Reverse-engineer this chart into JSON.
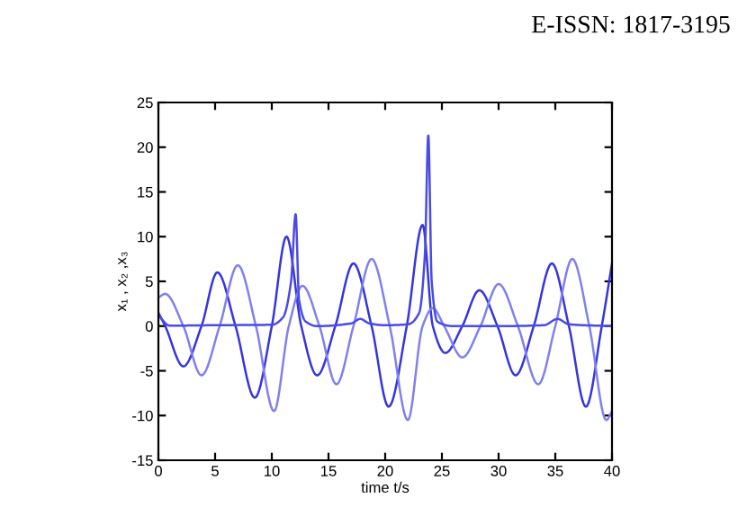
{
  "chart_data": {
    "type": "line",
    "xlabel": "time t/s",
    "ylabel": "x₁ , x₂ ,x₃",
    "annotations": [
      "E-ISSN: 1817-3195"
    ],
    "xlim": [
      0,
      40
    ],
    "xticks": [
      0,
      5,
      10,
      15,
      20,
      25,
      30,
      35,
      40
    ],
    "ylim": [
      -15,
      25
    ],
    "yticks": [
      -15,
      -10,
      -5,
      0,
      5,
      10,
      15,
      20,
      25
    ],
    "grid": false,
    "legend": false,
    "marker": "none",
    "line_style": "solid",
    "series": [
      {
        "color": "#3535e0",
        "x": [
          0,
          0.6,
          2.2,
          3.8,
          5.2,
          6.8,
          8.5,
          10,
          11.3,
          12.6,
          14,
          15.6,
          17.2,
          18.8,
          20.3,
          21.9,
          23.3,
          24.2,
          25.3,
          26.8,
          28.3,
          29.9,
          31.5,
          33.1,
          34.7,
          36.2,
          37.7,
          39.1,
          40
        ],
        "values": [
          1.5,
          0,
          -4.5,
          0,
          6,
          0,
          -8,
          0,
          10,
          0,
          -5.5,
          0,
          7,
          0,
          -9,
          0,
          11.3,
          0,
          -3,
          0,
          4,
          0,
          -5.5,
          0,
          7,
          0,
          -9,
          0,
          7
        ]
      },
      {
        "color": "#8080f0",
        "x": [
          0,
          0.6,
          2.2,
          3.8,
          5.4,
          7,
          8.6,
          10.2,
          11.5,
          12.7,
          14.2,
          15.7,
          17.2,
          18.8,
          20.4,
          22,
          23.3,
          24.2,
          25.2,
          26.8,
          28.4,
          30,
          31.7,
          33.5,
          35,
          36.5,
          38,
          39.5,
          40
        ],
        "values": [
          3.2,
          3.6,
          0,
          -5.5,
          0,
          6.8,
          0,
          -9.5,
          0,
          4.5,
          0,
          -6.5,
          0,
          7.5,
          0,
          -10.5,
          0,
          2,
          0,
          -3.5,
          0,
          4.7,
          0,
          -6.5,
          0,
          7.5,
          0,
          -10.5,
          -9.5
        ]
      },
      {
        "color": "#4a4ae6",
        "x": [
          0,
          1,
          5,
          10,
          11,
          11.7,
          12.1,
          12.4,
          13,
          14,
          17,
          17.8,
          18.6,
          20,
          22,
          23,
          23.5,
          23.8,
          24.1,
          24.6,
          26,
          30,
          34,
          35.2,
          36.2,
          40
        ],
        "values": [
          1.2,
          0.05,
          0.1,
          0.15,
          1,
          5,
          12.5,
          3,
          0.5,
          0,
          0.3,
          0.8,
          0.3,
          0.1,
          0.2,
          1.5,
          8,
          21.3,
          5,
          0.5,
          0,
          0,
          0.1,
          0.8,
          0.2,
          0
        ]
      }
    ]
  }
}
